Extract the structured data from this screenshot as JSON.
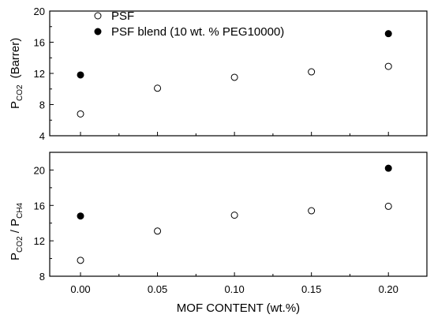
{
  "chart_data": [
    {
      "type": "scatter",
      "ylabel_main": "P",
      "ylabel_sub": "CO2",
      "ylabel_suffix": "(Barrer)",
      "ylim": [
        4,
        20
      ],
      "yticks": [
        4,
        8,
        12,
        16,
        20
      ],
      "xlim": [
        -0.02,
        0.225
      ],
      "legend": {
        "placement": "top-left"
      },
      "series": [
        {
          "name": "PSF",
          "marker": "open-circle",
          "x": [
            0.0,
            0.05,
            0.1,
            0.15,
            0.2
          ],
          "y": [
            6.8,
            10.1,
            11.5,
            12.2,
            12.9
          ]
        },
        {
          "name": "PSF blend (10 wt. % PEG10000)",
          "marker": "filled-circle",
          "x": [
            0.0,
            0.2
          ],
          "y": [
            11.8,
            17.1
          ]
        }
      ]
    },
    {
      "type": "scatter",
      "ylabel_parts": [
        {
          "text": "P",
          "sub": "CO2"
        },
        {
          "text": " / P",
          "sub": "CH4"
        }
      ],
      "ylim": [
        8,
        22
      ],
      "yticks": [
        8,
        12,
        16,
        20
      ],
      "xlim": [
        -0.02,
        0.225
      ],
      "xticks": [
        "0.00",
        "0.05",
        "0.10",
        "0.15",
        "0.20"
      ],
      "xtick_values": [
        0.0,
        0.05,
        0.1,
        0.15,
        0.2
      ],
      "xlabel": "MOF  CONTENT  (wt.%)",
      "series": [
        {
          "name": "PSF",
          "marker": "open-circle",
          "x": [
            0.0,
            0.05,
            0.1,
            0.15,
            0.2
          ],
          "y": [
            9.8,
            13.1,
            14.9,
            15.4,
            15.9
          ]
        },
        {
          "name": "PSF blend (10 wt. % PEG10000)",
          "marker": "filled-circle",
          "x": [
            0.0,
            0.2
          ],
          "y": [
            14.8,
            20.2
          ]
        }
      ]
    }
  ]
}
